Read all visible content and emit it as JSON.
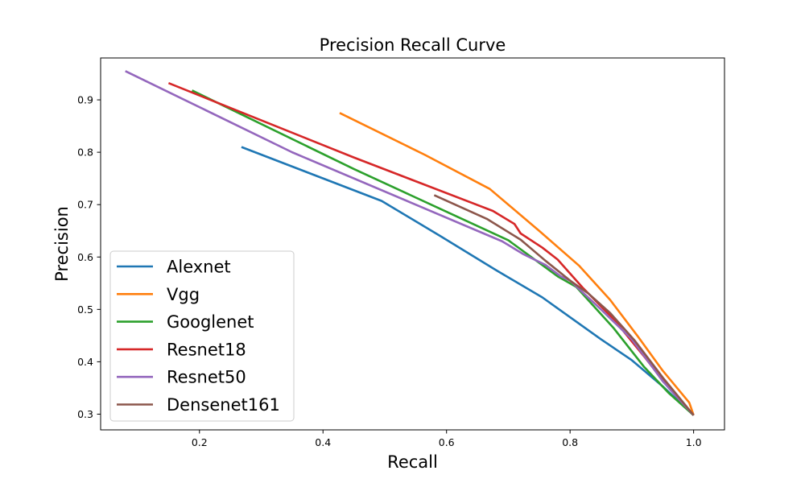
{
  "chart_data": {
    "type": "line",
    "title": "Precision Recall Curve",
    "xlabel": "Recall",
    "ylabel": "Precision",
    "xlim": [
      0.04,
      1.05
    ],
    "ylim": [
      0.27,
      0.98
    ],
    "xticks": [
      0.2,
      0.4,
      0.6,
      0.8,
      1.0
    ],
    "xtick_labels": [
      "0.2",
      "0.4",
      "0.6",
      "0.8",
      "1.0"
    ],
    "yticks": [
      0.3,
      0.4,
      0.5,
      0.6,
      0.7,
      0.8,
      0.9
    ],
    "ytick_labels": [
      "0.3",
      "0.4",
      "0.5",
      "0.6",
      "0.7",
      "0.8",
      "0.9"
    ],
    "grid": false,
    "legend_position": "lower-left",
    "series": [
      {
        "name": "Alexnet",
        "color": "#1f77b4",
        "x": [
          0.268,
          0.495,
          0.59,
          0.68,
          0.755,
          0.8,
          0.85,
          0.9,
          0.95,
          1.0
        ],
        "y": [
          0.81,
          0.707,
          0.64,
          0.575,
          0.523,
          0.485,
          0.443,
          0.403,
          0.353,
          0.298
        ]
      },
      {
        "name": "Vgg",
        "color": "#ff7f0e",
        "x": [
          0.427,
          0.565,
          0.67,
          0.75,
          0.815,
          0.865,
          0.91,
          0.95,
          0.993,
          1.0
        ],
        "y": [
          0.875,
          0.795,
          0.73,
          0.65,
          0.583,
          0.518,
          0.448,
          0.383,
          0.322,
          0.298
        ]
      },
      {
        "name": "Googlenet",
        "color": "#2ca02c",
        "x": [
          0.188,
          0.45,
          0.7,
          0.78,
          0.81,
          0.87,
          0.92,
          0.96,
          1.0
        ],
        "y": [
          0.918,
          0.768,
          0.632,
          0.563,
          0.543,
          0.465,
          0.39,
          0.34,
          0.298
        ]
      },
      {
        "name": "Resnet18",
        "color": "#d62728",
        "x": [
          0.15,
          0.45,
          0.675,
          0.71,
          0.72,
          0.755,
          0.78,
          0.82,
          0.87,
          0.92,
          0.96,
          1.0
        ],
        "y": [
          0.932,
          0.79,
          0.688,
          0.663,
          0.645,
          0.618,
          0.595,
          0.542,
          0.482,
          0.41,
          0.35,
          0.298
        ]
      },
      {
        "name": "Resnet50",
        "color": "#9467bd",
        "x": [
          0.08,
          0.35,
          0.69,
          0.725,
          0.76,
          0.785,
          0.8,
          0.85,
          0.9,
          0.95,
          1.0
        ],
        "y": [
          0.955,
          0.8,
          0.63,
          0.605,
          0.585,
          0.563,
          0.555,
          0.5,
          0.443,
          0.363,
          0.298
        ]
      },
      {
        "name": "Densenet161",
        "color": "#8c564b",
        "x": [
          0.58,
          0.665,
          0.72,
          0.76,
          0.8,
          0.83,
          0.865,
          0.905,
          0.95,
          1.0
        ],
        "y": [
          0.718,
          0.673,
          0.633,
          0.593,
          0.555,
          0.53,
          0.493,
          0.44,
          0.37,
          0.298
        ]
      }
    ]
  }
}
